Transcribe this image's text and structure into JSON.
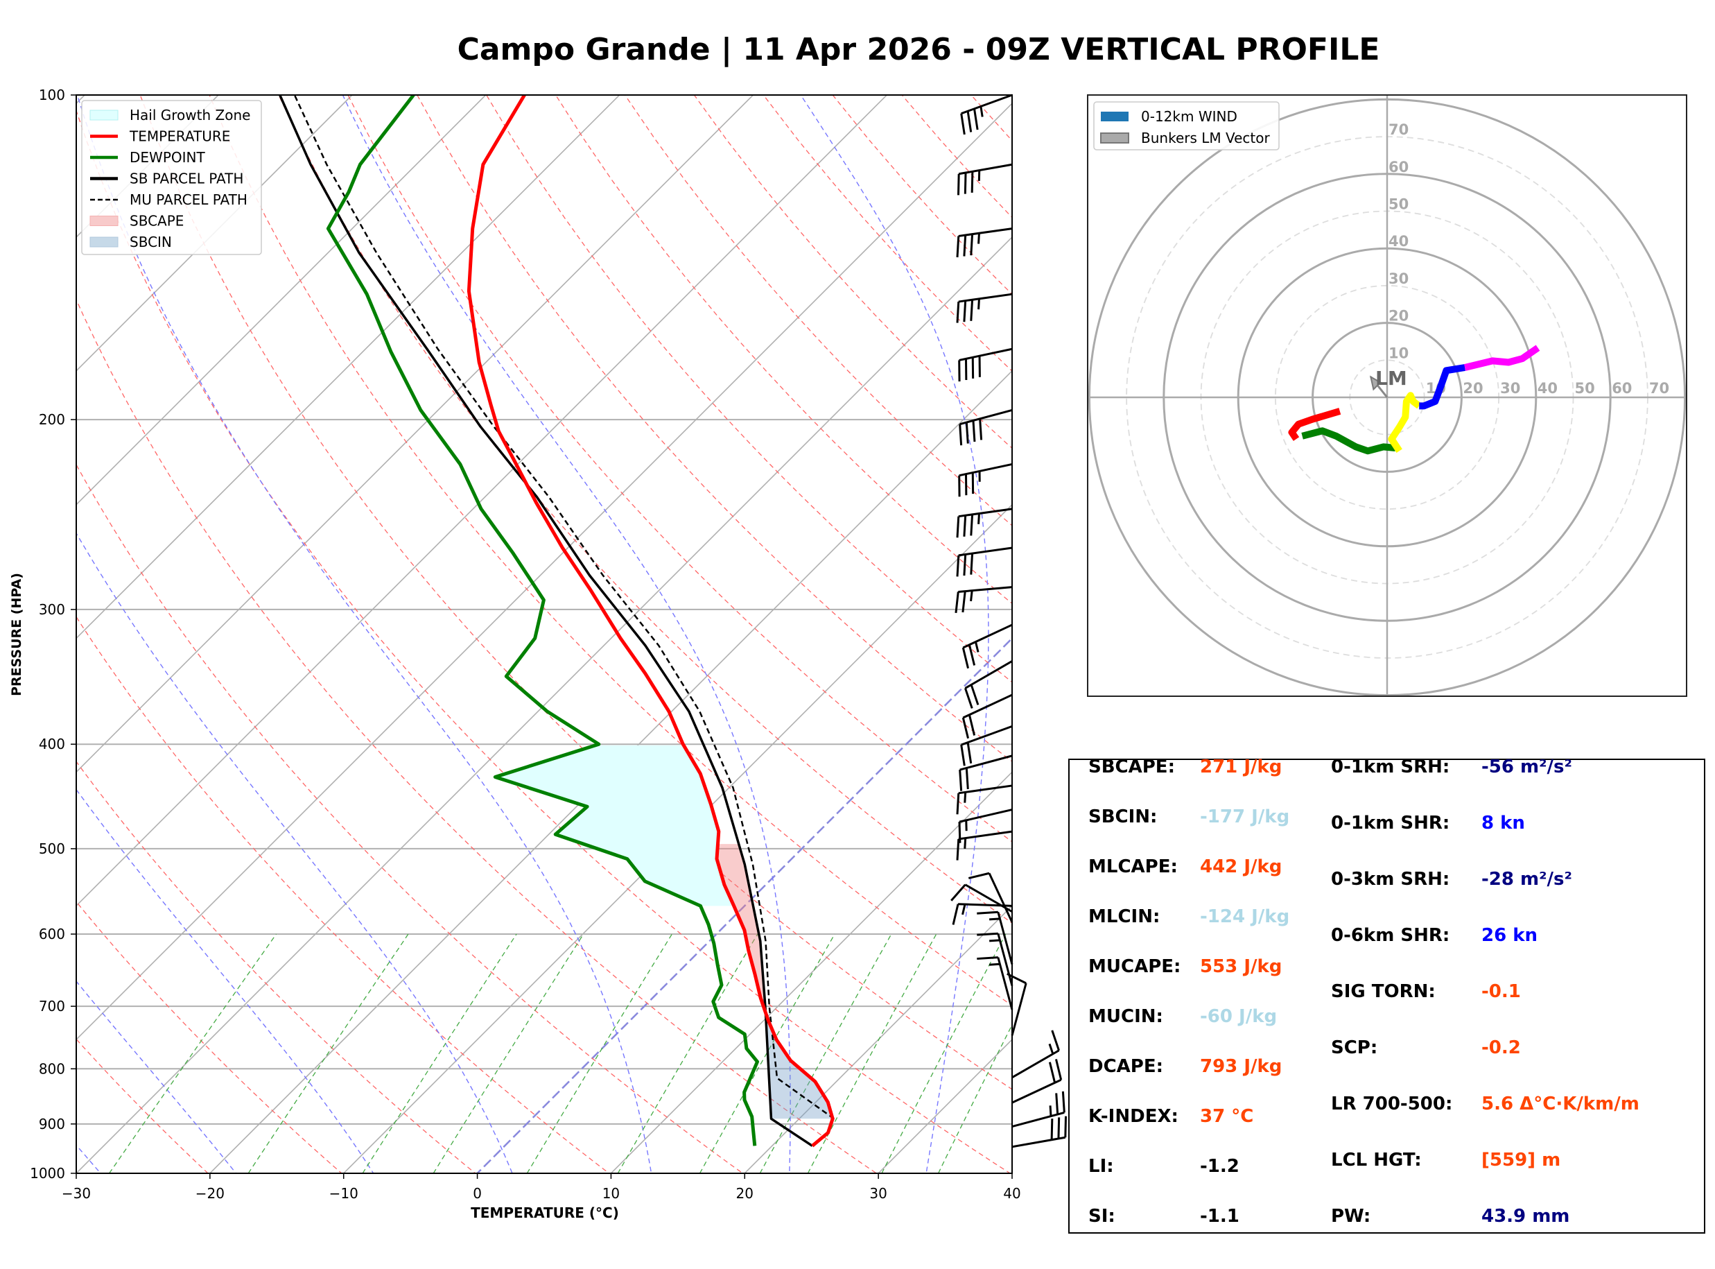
{
  "title": "Campo Grande | 11 Apr 2026 - 09Z VERTICAL PROFILE",
  "chart_data": [
    {
      "type": "line",
      "name": "skew-t",
      "xlabel": "TEMPERATURE (°C)",
      "ylabel": "PRESSURE (HPA)",
      "xlim": [
        -30,
        40
      ],
      "ylim": [
        1000,
        100
      ],
      "x_ticks": [
        "−30",
        "−20",
        "−10",
        "0",
        "10",
        "20",
        "30",
        "40"
      ],
      "x_tick_values": [
        -30,
        -20,
        -10,
        0,
        10,
        20,
        30,
        40
      ],
      "y_ticks": [
        "100",
        "200",
        "300",
        "400",
        "500",
        "600",
        "700",
        "800",
        "900",
        "1000"
      ],
      "y_tick_values": [
        100,
        200,
        300,
        400,
        500,
        600,
        700,
        800,
        900,
        1000
      ],
      "legend_position": "top-left",
      "legend": [
        {
          "label": "Hail Growth Zone",
          "kind": "patch",
          "color": "#e0ffff",
          "edge": "#b0f0f0"
        },
        {
          "label": "TEMPERATURE",
          "kind": "line",
          "color": "#ff0000"
        },
        {
          "label": "DEWPOINT",
          "kind": "line",
          "color": "#008000"
        },
        {
          "label": "SB PARCEL PATH",
          "kind": "line",
          "color": "#000000"
        },
        {
          "label": "MU PARCEL PATH",
          "kind": "dash",
          "color": "#000000"
        },
        {
          "label": "SBCAPE",
          "kind": "patch",
          "color": "#f8caca",
          "edge": "#f4b0b0"
        },
        {
          "label": "SBCIN",
          "kind": "patch",
          "color": "#c6d9e8",
          "edge": "#b0c8dc"
        }
      ],
      "temperature": [
        [
          943,
          23.0
        ],
        [
          917,
          23.2
        ],
        [
          890,
          22.5
        ],
        [
          859,
          20.9
        ],
        [
          822,
          18.4
        ],
        [
          786,
          15.0
        ],
        [
          752,
          12.4
        ],
        [
          721,
          10.3
        ],
        [
          688,
          8.1
        ],
        [
          654,
          5.9
        ],
        [
          621,
          3.6
        ],
        [
          595,
          1.8
        ],
        [
          565,
          -0.8
        ],
        [
          540,
          -3.1
        ],
        [
          511,
          -5.6
        ],
        [
          482,
          -7.5
        ],
        [
          455,
          -10.1
        ],
        [
          426,
          -13.2
        ],
        [
          400,
          -16.7
        ],
        [
          373,
          -20.2
        ],
        [
          344,
          -24.8
        ],
        [
          319,
          -29.3
        ],
        [
          288,
          -35.1
        ],
        [
          263,
          -40.4
        ],
        [
          239,
          -45.7
        ],
        [
          218,
          -50.6
        ],
        [
          205,
          -53.9
        ],
        [
          194,
          -56.4
        ],
        [
          177,
          -60.5
        ],
        [
          152,
          -66.6
        ],
        [
          133,
          -71.0
        ],
        [
          116,
          -75.0
        ],
        [
          100,
          -77.1
        ]
      ],
      "dewpoint": [
        [
          943,
          18.7
        ],
        [
          907,
          17.2
        ],
        [
          886,
          16.3
        ],
        [
          855,
          14.5
        ],
        [
          841,
          13.9
        ],
        [
          816,
          13.3
        ],
        [
          788,
          12.6
        ],
        [
          766,
          10.8
        ],
        [
          743,
          9.6
        ],
        [
          717,
          6.4
        ],
        [
          693,
          4.8
        ],
        [
          669,
          4.2
        ],
        [
          641,
          2.4
        ],
        [
          612,
          0.5
        ],
        [
          588,
          -1.3
        ],
        [
          565,
          -3.3
        ],
        [
          536,
          -9.3
        ],
        [
          511,
          -12.3
        ],
        [
          485,
          -19.5
        ],
        [
          457,
          -19.2
        ],
        [
          429,
          -28.3
        ],
        [
          400,
          -23.0
        ],
        [
          373,
          -29.3
        ],
        [
          346,
          -35.0
        ],
        [
          319,
          -35.7
        ],
        [
          294,
          -37.9
        ],
        [
          266,
          -43.7
        ],
        [
          242,
          -49.4
        ],
        [
          220,
          -54.3
        ],
        [
          196,
          -61.3
        ],
        [
          173,
          -67.9
        ],
        [
          153,
          -74.0
        ],
        [
          133,
          -81.8
        ],
        [
          123,
          -83.0
        ],
        [
          116,
          -84.2
        ],
        [
          100,
          -85.4
        ]
      ],
      "sb_parcel": [
        [
          943,
          23.0
        ],
        [
          890,
          17.9
        ],
        [
          816,
          14.7
        ],
        [
          701,
          9.1
        ],
        [
          609,
          3.8
        ],
        [
          517,
          -3.1
        ],
        [
          439,
          -10.5
        ],
        [
          373,
          -18.7
        ],
        [
          324,
          -26.9
        ],
        [
          279,
          -36.3
        ],
        [
          236,
          -46.1
        ],
        [
          203,
          -55.6
        ],
        [
          172,
          -65.4
        ],
        [
          140,
          -77.7
        ],
        [
          116,
          -87.9
        ],
        [
          100,
          -95.4
        ]
      ],
      "mu_parcel": [
        [
          890,
          22.6
        ],
        [
          816,
          15.3
        ],
        [
          701,
          9.4
        ],
        [
          609,
          4.2
        ],
        [
          517,
          -2.5
        ],
        [
          439,
          -9.7
        ],
        [
          373,
          -17.9
        ],
        [
          324,
          -25.9
        ],
        [
          279,
          -35.3
        ],
        [
          236,
          -45.2
        ],
        [
          203,
          -54.6
        ],
        [
          172,
          -64.6
        ],
        [
          140,
          -76.4
        ],
        [
          116,
          -86.7
        ],
        [
          100,
          -94.3
        ]
      ],
      "hail_zone_hpa": [
        400,
        565
      ],
      "sbcape_hpa": [
        495,
        705
      ],
      "sbcin_hpa": [
        705,
        890
      ],
      "wind_barbs": [
        [
          100,
          250,
          35
        ],
        [
          116,
          260,
          35
        ],
        [
          133,
          262,
          35
        ],
        [
          153,
          262,
          35
        ],
        [
          172,
          258,
          40
        ],
        [
          196,
          255,
          40
        ],
        [
          220,
          258,
          35
        ],
        [
          242,
          262,
          35
        ],
        [
          263,
          262,
          30
        ],
        [
          286,
          265,
          25
        ],
        [
          310,
          245,
          25
        ],
        [
          335,
          240,
          20
        ],
        [
          360,
          245,
          20
        ],
        [
          385,
          250,
          20
        ],
        [
          410,
          255,
          20
        ],
        [
          437,
          262,
          15
        ],
        [
          460,
          257,
          15
        ],
        [
          482,
          262,
          15
        ],
        [
          565,
          272,
          15
        ],
        [
          572,
          300,
          10
        ],
        [
          585,
          335,
          10
        ],
        [
          640,
          345,
          15
        ],
        [
          670,
          345,
          15
        ],
        [
          705,
          345,
          15
        ],
        [
          745,
          15,
          10
        ],
        [
          815,
          60,
          15
        ],
        [
          860,
          65,
          20
        ],
        [
          905,
          75,
          25
        ],
        [
          945,
          80,
          30
        ]
      ]
    },
    {
      "type": "line",
      "name": "hodograph",
      "legend": [
        {
          "label": "0-12km WIND",
          "color": "#1f77b4"
        },
        {
          "label": "Bunkers LM Vector",
          "color": "#aaaaaa"
        }
      ],
      "rings": [
        10,
        20,
        30,
        40,
        50,
        60,
        70,
        80
      ],
      "ring_labels": [
        "10",
        "20",
        "30",
        "40",
        "50",
        "60",
        "70"
      ],
      "lm_label": "LM",
      "lm_vector": [
        -4.4,
        5.5
      ],
      "segments": [
        {
          "color": "#ff0000",
          "points": [
            [
              -12.7,
              -3.7
            ],
            [
              -20.1,
              -5.9
            ],
            [
              -23.8,
              -7.2
            ],
            [
              -25.6,
              -9.4
            ],
            [
              -24.4,
              -11.2
            ]
          ]
        },
        {
          "color": "#008000",
          "points": [
            [
              -22.8,
              -10.4
            ],
            [
              -17.4,
              -9.0
            ],
            [
              -13.7,
              -10.4
            ],
            [
              -8.4,
              -13.3
            ],
            [
              -5.2,
              -14.4
            ],
            [
              -1.0,
              -13.3
            ],
            [
              2.2,
              -13.6
            ]
          ]
        },
        {
          "color": "#ffff00",
          "points": [
            [
              3.3,
              -14.4
            ],
            [
              1.2,
              -11.2
            ],
            [
              3.3,
              -8.0
            ],
            [
              4.9,
              -5.3
            ],
            [
              5.2,
              -1.1
            ],
            [
              6.3,
              0.5
            ],
            [
              7.0,
              -1.1
            ],
            [
              8.6,
              -2.3
            ]
          ]
        },
        {
          "color": "#0000ff",
          "points": [
            [
              8.6,
              -2.3
            ],
            [
              9.9,
              -2.3
            ],
            [
              12.9,
              -1.1
            ],
            [
              14.5,
              3.2
            ],
            [
              15.9,
              7.2
            ],
            [
              20.9,
              8.0
            ]
          ]
        },
        {
          "color": "#ff00ff",
          "points": [
            [
              20.9,
              8.0
            ],
            [
              28.3,
              9.8
            ],
            [
              32.6,
              9.4
            ],
            [
              36.3,
              10.4
            ],
            [
              40.5,
              13.3
            ]
          ]
        }
      ]
    }
  ],
  "stats": {
    "left": [
      {
        "label": "SBCAPE:",
        "value": "271 J/kg",
        "color": "#ff4500"
      },
      {
        "label": "SBCIN:",
        "value": "-177 J/kg",
        "color": "#add8e6"
      },
      {
        "label": "MLCAPE:",
        "value": "442 J/kg",
        "color": "#ff4500"
      },
      {
        "label": "MLCIN:",
        "value": "-124 J/kg",
        "color": "#add8e6"
      },
      {
        "label": "MUCAPE:",
        "value": "553 J/kg",
        "color": "#ff4500"
      },
      {
        "label": "MUCIN:",
        "value": "-60 J/kg",
        "color": "#add8e6"
      },
      {
        "label": "DCAPE:",
        "value": "793 J/kg",
        "color": "#ff4500"
      },
      {
        "label": "K-INDEX:",
        "value": "37 °C",
        "color": "#ff4500"
      },
      {
        "label": "LI:",
        "value": "-1.2",
        "color": "#000000"
      },
      {
        "label": "SI:",
        "value": "-1.1",
        "color": "#000000"
      }
    ],
    "right": [
      {
        "label": "0-1km SRH:",
        "value": "-56 m²/s²",
        "color": "#000080"
      },
      {
        "label": "0-1km SHR:",
        "value": "8 kn",
        "color": "#0000ff"
      },
      {
        "label": "0-3km SRH:",
        "value": "-28 m²/s²",
        "color": "#000080"
      },
      {
        "label": "0-6km SHR:",
        "value": "26 kn",
        "color": "#0000ff"
      },
      {
        "label": "SIG TORN:",
        "value": "-0.1",
        "color": "#ff4500"
      },
      {
        "label": "SCP:",
        "value": "-0.2",
        "color": "#ff4500"
      },
      {
        "label": "LR 700-500:",
        "value": "5.6 Δ°C·K/km/m",
        "color": "#ff4500"
      },
      {
        "label": "LCL HGT:",
        "value": "[559] m",
        "color": "#ff4500"
      },
      {
        "label": "PW:",
        "value": "43.9 mm",
        "color": "#000080"
      }
    ]
  }
}
